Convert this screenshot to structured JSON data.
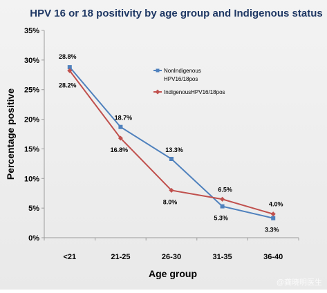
{
  "chart_data": {
    "type": "line",
    "title": "HPV 16 or 18 positivity by age group and Indigenous status",
    "xlabel": "Age group",
    "ylabel": "Percentage positive",
    "categories": [
      "<21",
      "21-25",
      "26-30",
      "31-35",
      "36-40"
    ],
    "yticks": [
      "0%",
      "5%",
      "10%",
      "15%",
      "20%",
      "25%",
      "30%",
      "35%"
    ],
    "ylim": [
      0,
      35
    ],
    "grid": false,
    "legend_position": "top-right",
    "series": [
      {
        "name_line1": "NonIndigenous",
        "name_line2": "HPV16/18pos",
        "color": "#4f81bd",
        "marker": "square",
        "values": [
          28.8,
          18.7,
          13.3,
          5.3,
          3.3
        ],
        "labels": [
          "28.8%",
          "18.7%",
          "13.3%",
          "5.3%",
          "3.3%"
        ]
      },
      {
        "name_line1": "IndigenousHPV16/18pos",
        "name_line2": "",
        "color": "#c0504d",
        "marker": "diamond",
        "values": [
          28.2,
          16.8,
          8.0,
          6.5,
          4.0
        ],
        "labels": [
          "28.2%",
          "16.8%",
          "8.0%",
          "6.5%",
          "4.0%"
        ]
      }
    ]
  },
  "watermark": "@龚晓明医生"
}
